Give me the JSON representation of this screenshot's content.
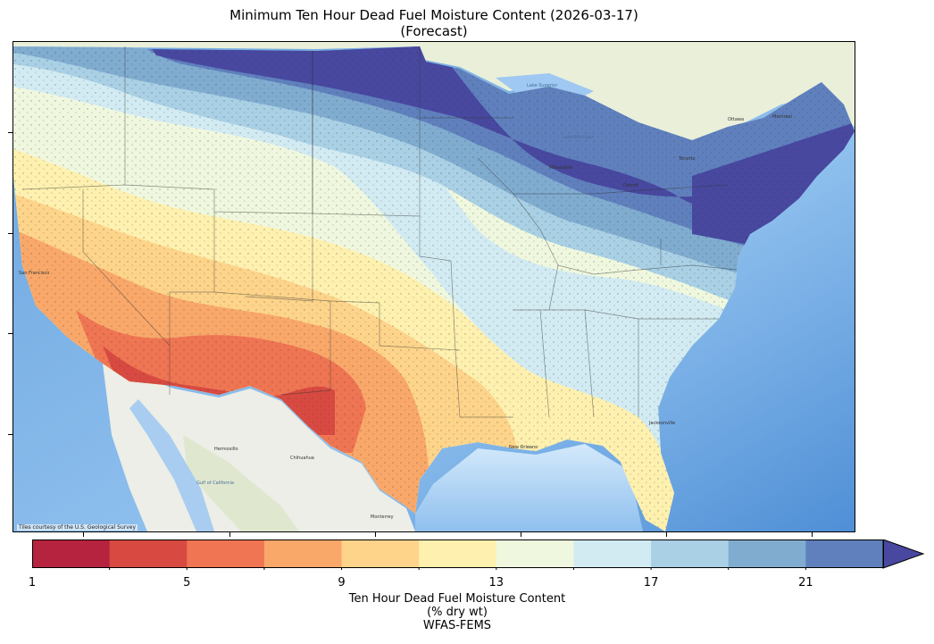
{
  "title": {
    "line1": "Minimum Ten Hour Dead Fuel Moisture Content (2026-03-17)",
    "line2": "(Forecast)"
  },
  "attribution": "Tiles courtesy of the U.S. Geological Survey",
  "map_labels": {
    "hermosillo": "Hermosillo",
    "chihuahua": "Chihuahua",
    "monterrey": "Monterrey",
    "gulf_of_california": "Gulf of California",
    "lake_superior": "Lake Superior",
    "lake_michigan": "Lake Michigan",
    "ottawa": "Ottawa",
    "montreal": "Montréal",
    "toronto": "Toronto",
    "milwaukee": "Milwaukee",
    "detroit": "Detroit",
    "jacksonville": "Jacksonville",
    "new_orleans": "New Orleans",
    "san_francisco": "San Francisco"
  },
  "colorbar": {
    "ticks": [
      "1",
      "5",
      "9",
      "13",
      "17",
      "21"
    ],
    "colors": [
      "#b5233e",
      "#d84a41",
      "#ef7553",
      "#f9a86a",
      "#fdd48a",
      "#fef0ae",
      "#eff8de",
      "#d2ebf2",
      "#a9d0e4",
      "#80acd0",
      "#5f80bd",
      "#4848a0"
    ],
    "label_line1": "Ten Hour Dead Fuel Moisture Content",
    "label_line2": "(% dry wt)",
    "label_line3": "WFAS-FEMS"
  }
}
